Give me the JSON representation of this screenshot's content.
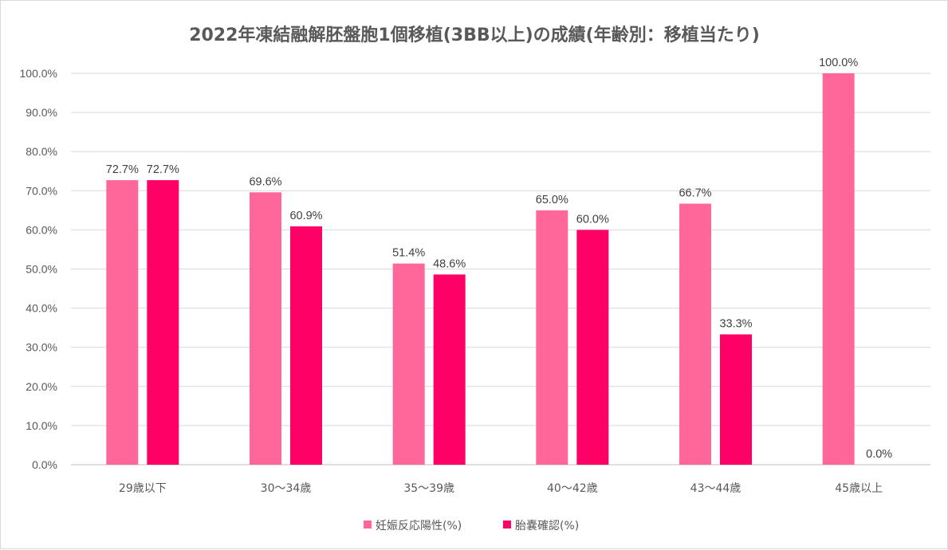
{
  "chart_data": {
    "type": "bar",
    "title": "2022年凍結融解胚盤胞1個移植(3BB以上)の成績(年齢別：移植当たり)",
    "categories": [
      "29歳以下",
      "30～34歳",
      "35～39歳",
      "40～42歳",
      "43～44歳",
      "45歳以上"
    ],
    "series": [
      {
        "name": "妊娠反応陽性(%)",
        "color": "#ff6699",
        "values": [
          72.7,
          69.6,
          51.4,
          65.0,
          66.7,
          100.0
        ],
        "labels": [
          "72.7%",
          "69.6%",
          "51.4%",
          "65.0%",
          "66.7%",
          "100.0%"
        ]
      },
      {
        "name": "胎嚢確認(%)",
        "color": "#ff0066",
        "values": [
          72.7,
          60.9,
          48.6,
          60.0,
          33.3,
          0.0
        ],
        "labels": [
          "72.7%",
          "60.9%",
          "48.6%",
          "60.0%",
          "33.3%",
          "0.0%"
        ]
      }
    ],
    "ylim": [
      0,
      100
    ],
    "yticks": [
      "0.0%",
      "10.0%",
      "20.0%",
      "30.0%",
      "40.0%",
      "50.0%",
      "60.0%",
      "70.0%",
      "80.0%",
      "90.0%",
      "100.0%"
    ],
    "grid": true,
    "legend_position": "bottom"
  }
}
